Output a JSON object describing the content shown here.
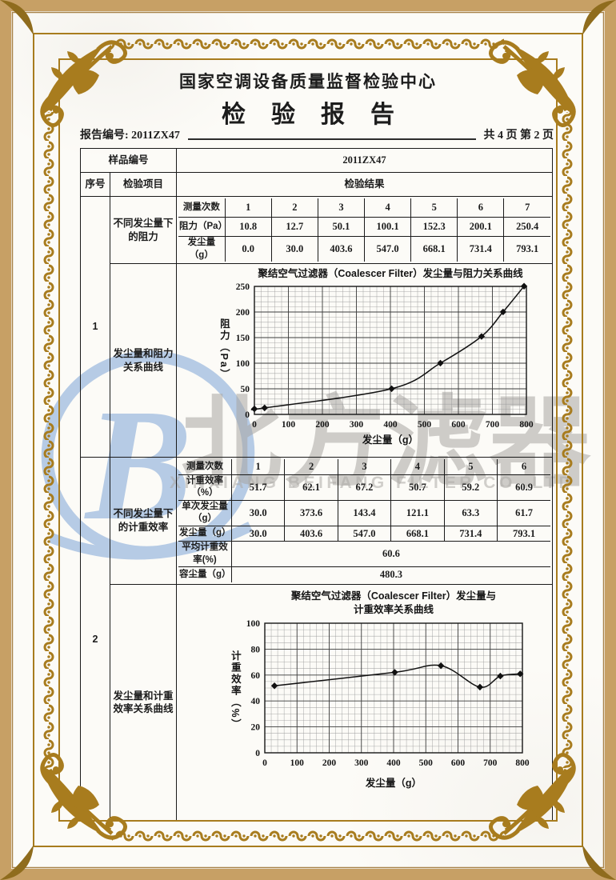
{
  "header": {
    "org_title": "国家空调设备质量监督检验中心",
    "report_title": "检验报告",
    "report_no": "报告编号: 2011ZX47",
    "page_info": "共 4 页 第 2 页"
  },
  "table": {
    "sample_label": "样品编号",
    "sample_value": "2011ZX47",
    "col_seq": "序号",
    "col_item": "检验项目",
    "col_result": "检验结果",
    "sections": [
      {
        "seq": "1",
        "item_a": "不同发尘量下的阻力",
        "item_b": "发尘量和阻力关系曲线"
      },
      {
        "seq": "2",
        "item_a": "不同发尘量下的计重效率",
        "item_b": "发尘量和计重效率关系曲线"
      }
    ],
    "grid1": {
      "corner": "测量次数",
      "headers": [
        "1",
        "2",
        "3",
        "4",
        "5",
        "6",
        "7"
      ],
      "rows": [
        {
          "label": "阻力（Pa）",
          "values": [
            "10.8",
            "12.7",
            "50.1",
            "100.1",
            "152.3",
            "200.1",
            "250.4"
          ]
        },
        {
          "label": "发尘量（g）",
          "values": [
            "0.0",
            "30.0",
            "403.6",
            "547.0",
            "668.1",
            "731.4",
            "793.1"
          ]
        }
      ]
    },
    "grid2": {
      "corner": "测量次数",
      "headers": [
        "1",
        "2",
        "3",
        "4",
        "5",
        "6"
      ],
      "rows": [
        {
          "label": "计重效率（%）",
          "values": [
            "51.7",
            "62.1",
            "67.2",
            "50.7",
            "59.2",
            "60.9"
          ]
        },
        {
          "label": "单次发尘量（g）",
          "values": [
            "30.0",
            "373.6",
            "143.4",
            "121.1",
            "63.3",
            "61.7"
          ]
        },
        {
          "label": "发尘量（g）",
          "values": [
            "30.0",
            "403.6",
            "547.0",
            "668.1",
            "731.4",
            "793.1"
          ]
        }
      ],
      "summary": [
        {
          "label": "平均计重效率(%)",
          "value": "60.6"
        },
        {
          "label": "容尘量（g）",
          "value": "480.3"
        }
      ]
    }
  },
  "watermark": {
    "logo_letter": "B",
    "cn": "北方滤器",
    "en": "XINXIANG BEIFANG FILTER CO.,LTD",
    "blue": "#b6cbe5",
    "gray": "#aaa8a4"
  },
  "colors": {
    "gold": "#a87c1e",
    "tan": "#c7a065",
    "ink": "#1c1c1c"
  },
  "chart_data": [
    {
      "type": "line",
      "title": "聚结空气过滤器（Coalescer Filter）发尘量与阻力关系曲线",
      "xlabel": "发尘量（g）",
      "ylabel": "阻力（Pa）",
      "x": [
        0,
        30.0,
        403.6,
        547.0,
        668.1,
        731.4,
        793.1
      ],
      "y": [
        10.8,
        12.7,
        50.1,
        100.1,
        152.3,
        200.1,
        250.4
      ],
      "xlim": [
        0,
        800
      ],
      "ylim": [
        0,
        250
      ],
      "xticks": [
        0,
        100,
        200,
        300,
        400,
        500,
        600,
        700,
        800
      ],
      "yticks": [
        0,
        50,
        100,
        150,
        200,
        250
      ],
      "xminor": 20,
      "yminor": 10,
      "grid": true,
      "legend": "none",
      "marker": "diamond",
      "line_color": "#111111"
    },
    {
      "type": "line",
      "title": "聚结空气过滤器（Coalescer Filter）发尘量与",
      "title2": "计重效率关系曲线",
      "xlabel": "发尘量（g）",
      "ylabel": "计重效率（%）",
      "x": [
        30.0,
        403.6,
        547.0,
        668.1,
        731.4,
        793.1
      ],
      "y": [
        51.7,
        62.1,
        67.2,
        50.7,
        59.2,
        60.9
      ],
      "xlim": [
        0,
        800
      ],
      "ylim": [
        0,
        100
      ],
      "xticks": [
        0,
        100,
        200,
        300,
        400,
        500,
        600,
        700,
        800
      ],
      "yticks": [
        0,
        20,
        40,
        60,
        80,
        100
      ],
      "xminor": 20,
      "yminor": 5,
      "grid": true,
      "legend": "none",
      "marker": "diamond",
      "line_color": "#111111"
    }
  ]
}
